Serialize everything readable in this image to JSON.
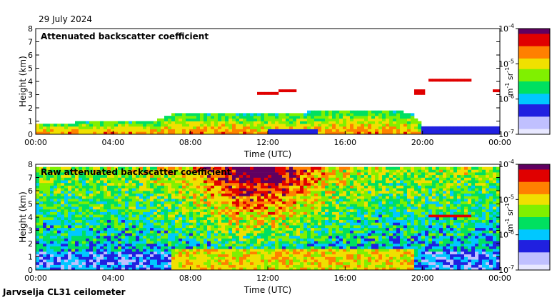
{
  "date": "29 July 2024",
  "site": "Jarvselja CL31 ceilometer",
  "colors": {
    "cmap": [
      "#e8e8ff",
      "#c0c0ff",
      "#2020e0",
      "#00c8ff",
      "#00e060",
      "#80f000",
      "#f0e000",
      "#ff8000",
      "#e00000",
      "#600060"
    ],
    "panel_border": "#000000"
  },
  "chart_data": [
    {
      "type": "heatmap",
      "title": "Attenuated backscatter coefficient",
      "xlabel": "Time (UTC)",
      "ylabel": "Height (km)",
      "xticks": [
        "00:00",
        "04:00",
        "08:00",
        "12:00",
        "16:00",
        "20:00",
        "00:00"
      ],
      "xlim_hours": [
        0,
        24
      ],
      "yticks": [
        "0",
        "1",
        "2",
        "3",
        "4",
        "5",
        "6",
        "7",
        "8"
      ],
      "ylim_km": [
        0,
        8
      ],
      "colorbar": {
        "ticks": [
          "10",
          "10",
          "10",
          "10"
        ],
        "exponents": [
          "-4",
          "-5",
          "-6",
          "-7"
        ],
        "label_base": "m",
        "label_exp1": "-1",
        "label_mid": " sr",
        "label_exp2": "-1",
        "range": [
          1e-07,
          0.0001
        ]
      },
      "features": {
        "boundary_layer_top_km": [
          [
            0,
            0.9
          ],
          [
            2,
            0.9
          ],
          [
            4,
            1.1
          ],
          [
            6,
            1.0
          ],
          [
            7,
            1.5
          ],
          [
            10,
            1.6
          ],
          [
            12,
            1.5
          ],
          [
            14,
            1.7
          ],
          [
            16,
            1.8
          ],
          [
            18,
            1.9
          ],
          [
            19.5,
            1.6
          ],
          [
            20,
            0.6
          ],
          [
            24,
            0.6
          ]
        ],
        "cloud_layers": [
          {
            "start_h": 11.5,
            "end_h": 12.5,
            "height_km": 3.1
          },
          {
            "start_h": 12.5,
            "end_h": 13.5,
            "height_km": 3.3
          },
          {
            "start_h": 20.3,
            "end_h": 22.5,
            "height_km": 4.1
          },
          {
            "start_h": 19.5,
            "end_h": 20.2,
            "height_km": 3.2
          },
          {
            "start_h": 23.6,
            "end_h": 24.0,
            "height_km": 3.3
          }
        ]
      }
    },
    {
      "type": "heatmap",
      "title": "Raw attenuated backscatter coefficient",
      "xlabel": "Time (UTC)",
      "ylabel": "Height (km)",
      "xticks": [
        "00:00",
        "04:00",
        "08:00",
        "12:00",
        "16:00",
        "20:00",
        "00:00"
      ],
      "xlim_hours": [
        0,
        24
      ],
      "yticks": [
        "0",
        "1",
        "2",
        "3",
        "4",
        "5",
        "6",
        "7",
        "8"
      ],
      "ylim_km": [
        0,
        8
      ],
      "colorbar": {
        "ticks": [
          "10",
          "10",
          "10",
          "10"
        ],
        "exponents": [
          "-4",
          "-5",
          "-6",
          "-7"
        ],
        "label_base": "m",
        "label_exp1": "-1",
        "label_mid": " sr",
        "label_exp2": "-1",
        "range": [
          1e-07,
          0.0001
        ]
      },
      "features": {
        "noise_peak_hours": [
          9.5,
          14.5
        ],
        "cloud_layers": [
          {
            "start_h": 20.3,
            "end_h": 22.5,
            "height_km": 4.1
          }
        ]
      }
    }
  ]
}
